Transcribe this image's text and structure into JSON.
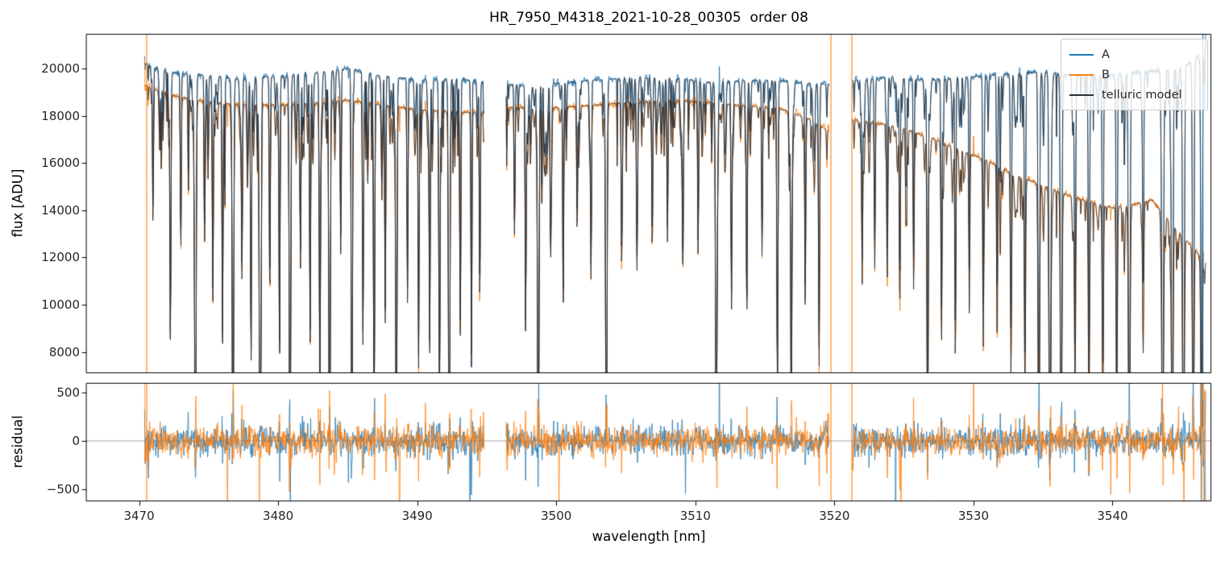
{
  "figure": {
    "title": "HR_7950_M4318_2021-10-28_00305  order 08",
    "xlabel": "wavelength [nm]",
    "background": "#ffffff"
  },
  "legend": {
    "entries": [
      {
        "label": "A",
        "color": "#1f77b4"
      },
      {
        "label": "B",
        "color": "#ff7f0e"
      },
      {
        "label": "telluric model",
        "color": "#2b3038"
      }
    ]
  },
  "chart_data": [
    {
      "type": "line",
      "name": "flux-panel",
      "title": "HR_7950_M4318_2021-10-28_00305  order 08",
      "xlabel": "wavelength [nm]",
      "ylabel": "flux [ADU]",
      "xlim": [
        3466.2,
        3547.1
      ],
      "ylim": [
        7100,
        21470
      ],
      "xticks": [
        3470,
        3480,
        3490,
        3500,
        3510,
        3520,
        3530,
        3540
      ],
      "yticks": [
        8000,
        10000,
        12000,
        14000,
        16000,
        18000,
        20000
      ],
      "grid": false,
      "legend_position": "upper right",
      "segments": [
        [
          3470.4,
          3494.8
        ],
        [
          3496.4,
          3519.6
        ],
        [
          3521.3,
          3546.7
        ]
      ],
      "series": [
        {
          "name": "A",
          "color": "#1f77b4",
          "continuum": [
            [
              3468,
              21000
            ],
            [
              3470.4,
              20200
            ],
            [
              3472,
              19850
            ],
            [
              3475,
              19700
            ],
            [
              3477,
              19580
            ],
            [
              3480,
              19680
            ],
            [
              3483,
              19820
            ],
            [
              3485,
              20020
            ],
            [
              3487,
              19720
            ],
            [
              3490,
              19520
            ],
            [
              3493,
              19560
            ],
            [
              3494.8,
              19420
            ],
            [
              3496.4,
              19360
            ],
            [
              3498,
              19230
            ],
            [
              3500,
              19380
            ],
            [
              3503,
              19520
            ],
            [
              3506,
              19620
            ],
            [
              3509,
              19560
            ],
            [
              3511,
              19430
            ],
            [
              3513,
              19470
            ],
            [
              3515,
              19520
            ],
            [
              3517,
              19430
            ],
            [
              3519.6,
              19320
            ],
            [
              3521.3,
              19500
            ],
            [
              3524,
              19620
            ],
            [
              3527,
              19520
            ],
            [
              3530,
              19660
            ],
            [
              3533,
              19800
            ],
            [
              3535,
              19860
            ],
            [
              3537,
              19720
            ],
            [
              3539,
              19700
            ],
            [
              3541,
              19800
            ],
            [
              3543,
              19900
            ],
            [
              3545,
              20000
            ],
            [
              3546,
              20400
            ],
            [
              3546.7,
              21200
            ]
          ]
        },
        {
          "name": "B",
          "color": "#ff7f0e",
          "continuum": [
            [
              3468,
              19600
            ],
            [
              3470.4,
              19280
            ],
            [
              3472,
              18920
            ],
            [
              3474,
              18660
            ],
            [
              3477,
              18470
            ],
            [
              3480,
              18460
            ],
            [
              3483,
              18560
            ],
            [
              3485,
              18660
            ],
            [
              3488,
              18420
            ],
            [
              3490,
              18260
            ],
            [
              3493,
              18160
            ],
            [
              3494.8,
              18120
            ],
            [
              3496.4,
              18360
            ],
            [
              3499,
              18310
            ],
            [
              3502,
              18420
            ],
            [
              3505,
              18560
            ],
            [
              3508,
              18660
            ],
            [
              3510,
              18610
            ],
            [
              3512,
              18510
            ],
            [
              3514,
              18410
            ],
            [
              3516,
              18310
            ],
            [
              3518,
              17920
            ],
            [
              3519.6,
              17350
            ],
            [
              3521.3,
              17860
            ],
            [
              3523,
              17700
            ],
            [
              3525,
              17460
            ],
            [
              3527,
              17060
            ],
            [
              3529,
              16560
            ],
            [
              3531,
              16110
            ],
            [
              3533,
              15500
            ],
            [
              3535,
              15050
            ],
            [
              3537,
              14600
            ],
            [
              3538.5,
              14350
            ],
            [
              3540,
              14100
            ],
            [
              3541.5,
              14250
            ],
            [
              3542.8,
              14450
            ],
            [
              3544,
              13600
            ],
            [
              3545,
              12900
            ],
            [
              3546,
              12300
            ],
            [
              3546.7,
              11800
            ]
          ]
        },
        {
          "name": "telluric model",
          "color": "#2b3038"
        }
      ],
      "telluric_lines": [
        [
          3471.0,
          0.3,
          0.05
        ],
        [
          3471.6,
          0.2,
          0.04
        ],
        [
          3472.25,
          0.55,
          0.05
        ],
        [
          3473.0,
          0.35,
          0.05
        ],
        [
          3473.55,
          0.25,
          0.04
        ],
        [
          3474.05,
          0.97,
          0.07
        ],
        [
          3474.7,
          0.3,
          0.04
        ],
        [
          3475.3,
          0.45,
          0.05
        ],
        [
          3476.0,
          0.55,
          0.05
        ],
        [
          3476.75,
          0.97,
          0.07
        ],
        [
          3477.4,
          0.4,
          0.05
        ],
        [
          3478.05,
          0.6,
          0.05
        ],
        [
          3478.7,
          0.97,
          0.08
        ],
        [
          3479.4,
          0.45,
          0.05
        ],
        [
          3480.1,
          0.6,
          0.05
        ],
        [
          3480.85,
          0.97,
          0.07
        ],
        [
          3481.6,
          0.35,
          0.05
        ],
        [
          3482.3,
          0.55,
          0.05
        ],
        [
          3483.0,
          0.65,
          0.06
        ],
        [
          3483.7,
          0.97,
          0.07
        ],
        [
          3484.5,
          0.35,
          0.05
        ],
        [
          3485.3,
          0.88,
          0.06
        ],
        [
          3486.1,
          0.55,
          0.05
        ],
        [
          3486.9,
          0.75,
          0.06
        ],
        [
          3487.7,
          0.5,
          0.05
        ],
        [
          3488.5,
          0.92,
          0.06
        ],
        [
          3489.3,
          0.45,
          0.05
        ],
        [
          3490.1,
          0.6,
          0.05
        ],
        [
          3490.9,
          0.55,
          0.05
        ],
        [
          3491.6,
          0.7,
          0.06
        ],
        [
          3492.3,
          0.97,
          0.07
        ],
        [
          3493.1,
          0.5,
          0.05
        ],
        [
          3493.9,
          0.6,
          0.05
        ],
        [
          3494.5,
          0.45,
          0.05
        ],
        [
          3497.0,
          0.3,
          0.05
        ],
        [
          3497.8,
          0.5,
          0.05
        ],
        [
          3498.7,
          0.97,
          0.07
        ],
        [
          3499.6,
          0.3,
          0.05
        ],
        [
          3500.5,
          0.45,
          0.05
        ],
        [
          3501.5,
          0.3,
          0.05
        ],
        [
          3502.5,
          0.4,
          0.05
        ],
        [
          3503.6,
          0.92,
          0.07
        ],
        [
          3504.7,
          0.35,
          0.05
        ],
        [
          3505.8,
          0.25,
          0.05
        ],
        [
          3506.9,
          0.35,
          0.05
        ],
        [
          3508.0,
          0.3,
          0.05
        ],
        [
          3509.1,
          0.4,
          0.05
        ],
        [
          3510.2,
          0.35,
          0.05
        ],
        [
          3511.5,
          0.9,
          0.07
        ],
        [
          3512.6,
          0.4,
          0.05
        ],
        [
          3513.7,
          0.5,
          0.05
        ],
        [
          3514.8,
          0.35,
          0.05
        ],
        [
          3515.9,
          0.65,
          0.06
        ],
        [
          3516.9,
          0.8,
          0.06
        ],
        [
          3517.9,
          0.45,
          0.05
        ],
        [
          3518.9,
          0.55,
          0.05
        ],
        [
          3522.0,
          0.3,
          0.05
        ],
        [
          3522.9,
          0.35,
          0.05
        ],
        [
          3523.8,
          0.3,
          0.05
        ],
        [
          3524.7,
          0.45,
          0.05
        ],
        [
          3525.7,
          0.4,
          0.05
        ],
        [
          3526.7,
          0.8,
          0.06
        ],
        [
          3527.7,
          0.45,
          0.05
        ],
        [
          3528.7,
          0.5,
          0.05
        ],
        [
          3529.7,
          0.4,
          0.05
        ],
        [
          3530.7,
          0.45,
          0.05
        ],
        [
          3531.7,
          0.5,
          0.05
        ],
        [
          3532.7,
          0.55,
          0.06
        ],
        [
          3533.7,
          0.6,
          0.06
        ],
        [
          3534.7,
          0.92,
          0.07
        ],
        [
          3535.5,
          0.97,
          0.08
        ],
        [
          3536.3,
          0.92,
          0.07
        ],
        [
          3537.3,
          0.55,
          0.06
        ],
        [
          3538.3,
          0.6,
          0.06
        ],
        [
          3539.3,
          0.65,
          0.06
        ],
        [
          3540.3,
          0.7,
          0.06
        ],
        [
          3541.2,
          0.92,
          0.08
        ],
        [
          3542.2,
          0.45,
          0.06
        ],
        [
          3543.6,
          0.95,
          0.08
        ],
        [
          3544.3,
          0.9,
          0.07
        ],
        [
          3545.1,
          0.95,
          0.08
        ],
        [
          3545.8,
          0.85,
          0.07
        ],
        [
          3546.4,
          0.9,
          0.07
        ]
      ],
      "saturated_columns": {
        "A": [
          3546.5
        ],
        "B": [
          3470.55,
          3519.75,
          3521.25
        ]
      }
    },
    {
      "type": "line",
      "name": "residual-panel",
      "ylabel": "residual",
      "ylim": [
        -625,
        600
      ],
      "yticks": [
        -500,
        0,
        500
      ],
      "zero_line": 0,
      "series": [
        {
          "name": "A residual",
          "color": "#1f77b4",
          "typical_amplitude": 150
        },
        {
          "name": "B residual",
          "color": "#ff7f0e",
          "typical_amplitude": 150
        }
      ]
    }
  ]
}
